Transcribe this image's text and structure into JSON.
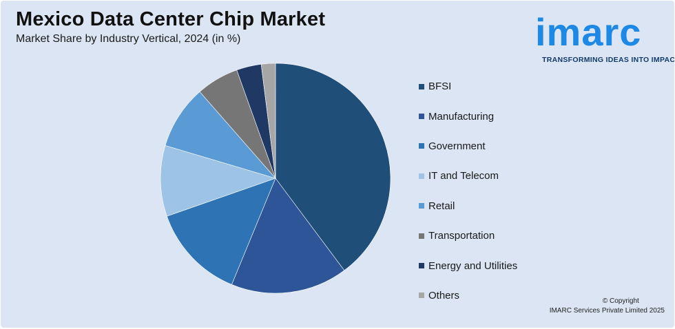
{
  "title": "Mexico Data Center Chip Market",
  "subtitle": "Market Share by Industry Vertical, 2024 (in %)",
  "logo": {
    "wordmark": "imarc",
    "tagline": "TRANSFORMING IDEAS INTO IMPACT",
    "color": "#1e88e5"
  },
  "copyright": {
    "line1": "© Copyright",
    "line2": "IMARC Services Private Limited 2025"
  },
  "chart_data": {
    "type": "pie",
    "legend_position": "right",
    "slices": [
      {
        "label": "BFSI",
        "value": 40,
        "color": "#1f4e79"
      },
      {
        "label": "Manufacturing",
        "value": 16.5,
        "color": "#2e5597"
      },
      {
        "label": "Government",
        "value": 13.5,
        "color": "#2e74b5"
      },
      {
        "label": "IT and Telecom",
        "value": 10,
        "color": "#9dc3e6"
      },
      {
        "label": "Retail",
        "value": 9,
        "color": "#5b9bd5"
      },
      {
        "label": "Transportation",
        "value": 6,
        "color": "#767676"
      },
      {
        "label": "Energy and Utilities",
        "value": 3.5,
        "color": "#203864"
      },
      {
        "label": "Others",
        "value": 2,
        "color": "#a6a6a6"
      }
    ]
  }
}
